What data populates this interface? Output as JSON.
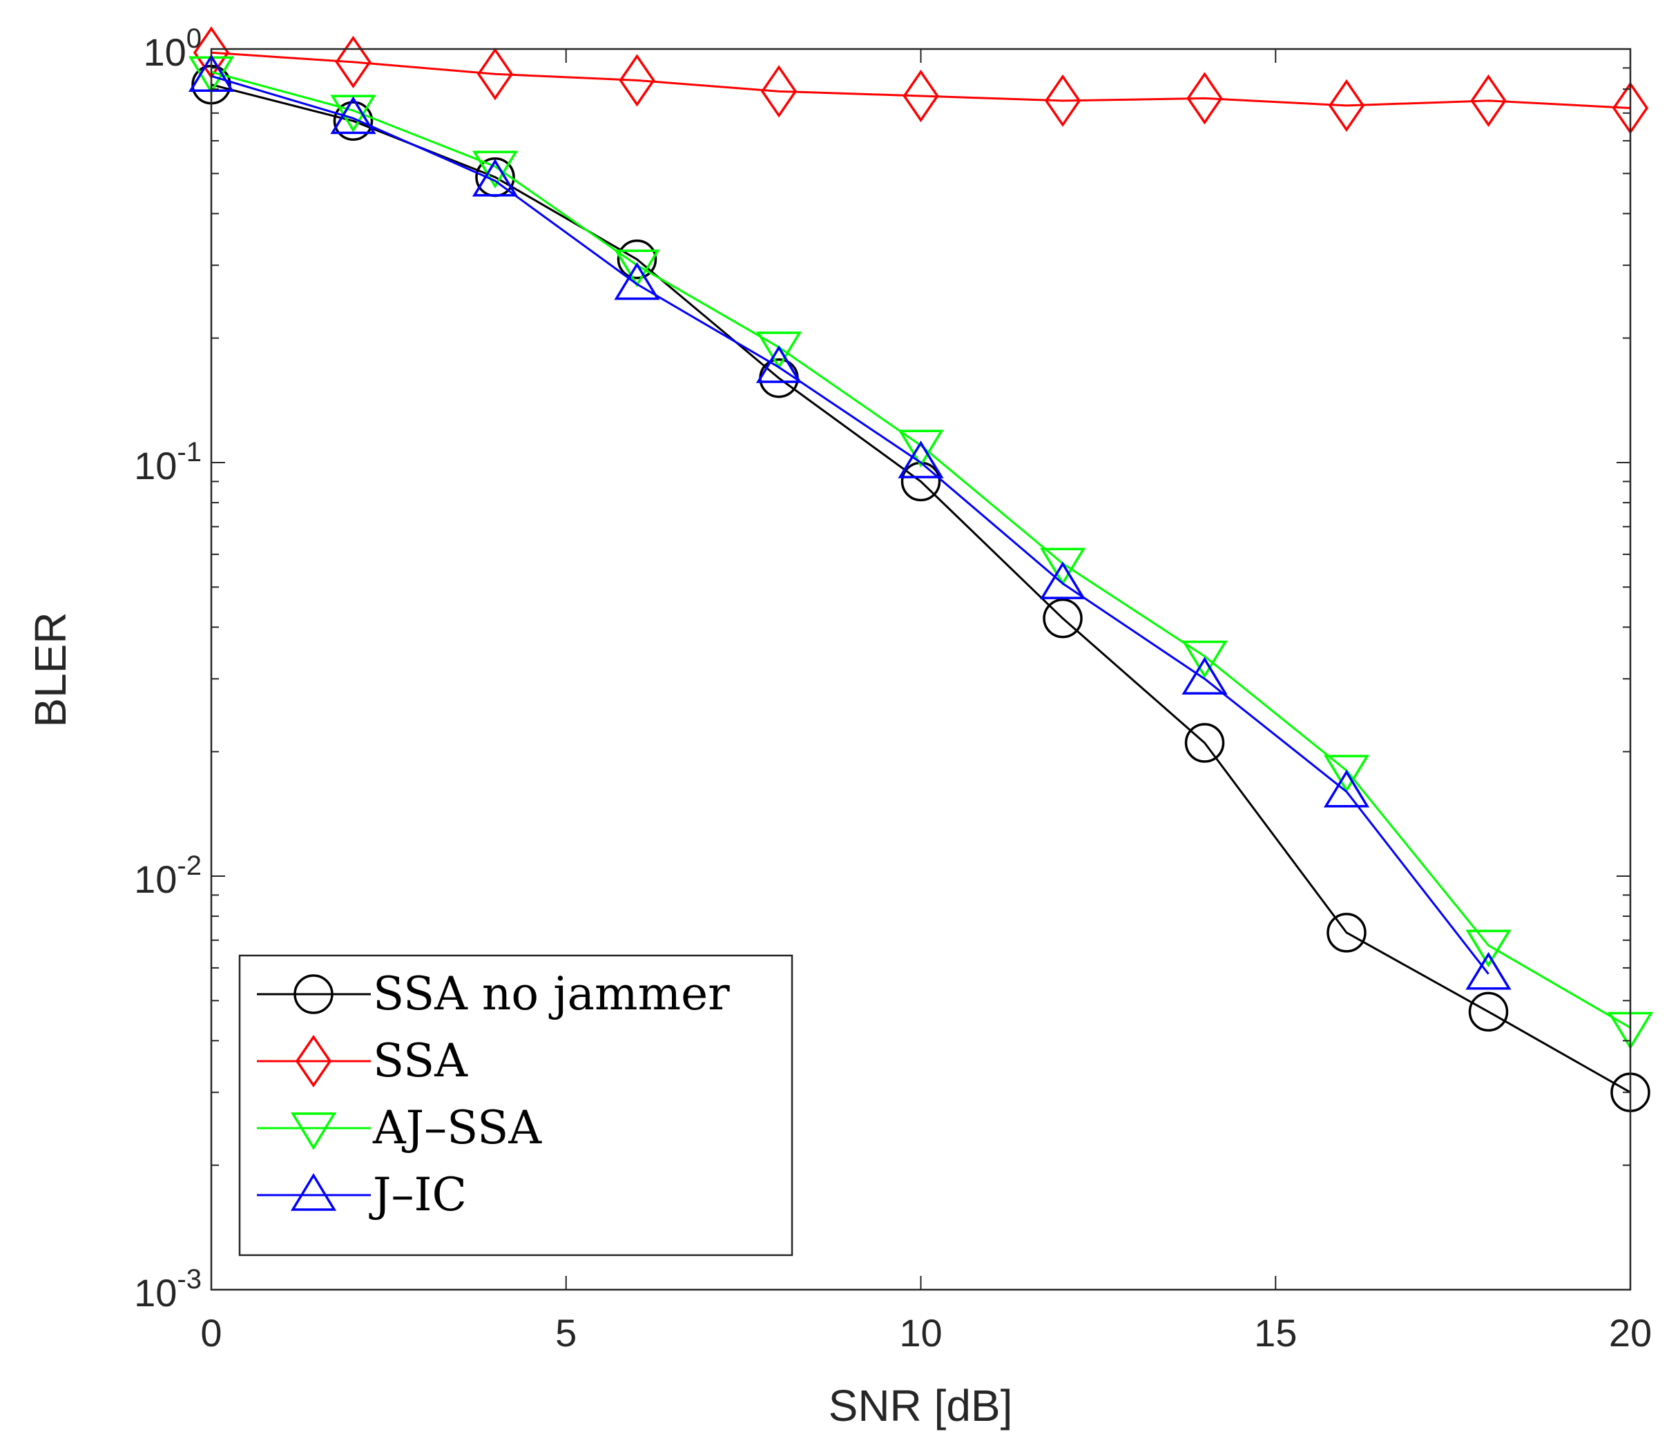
{
  "chart_data": {
    "type": "line",
    "title": "",
    "xlabel": "SNR [dB]",
    "ylabel": "BLER",
    "yscale": "log",
    "xlim": [
      0,
      20
    ],
    "ylim": [
      0.001,
      1
    ],
    "xticks": [
      0,
      5,
      10,
      15,
      20
    ],
    "xtick_labels": [
      "0",
      "5",
      "10",
      "15",
      "20"
    ],
    "yticks": [
      0.001,
      0.01,
      0.1,
      1
    ],
    "ytick_labels": [
      {
        "base": "10",
        "exp": "-3"
      },
      {
        "base": "10",
        "exp": "-2"
      },
      {
        "base": "10",
        "exp": "-1"
      },
      {
        "base": "10",
        "exp": "0"
      }
    ],
    "grid": false,
    "legend_position": "bottom-left",
    "x": [
      0,
      2,
      4,
      6,
      8,
      10,
      12,
      14,
      16,
      18,
      20
    ],
    "series": [
      {
        "name": "SSA no jammer",
        "color": "#000000",
        "marker": "circle",
        "values": [
          0.82,
          0.67,
          0.49,
          0.31,
          0.16,
          0.09,
          0.042,
          0.021,
          0.0073,
          0.0047,
          0.003
        ]
      },
      {
        "name": "SSA",
        "color": "#ff0000",
        "marker": "diamond",
        "values": [
          0.98,
          0.93,
          0.87,
          0.84,
          0.79,
          0.77,
          0.75,
          0.76,
          0.73,
          0.75,
          0.72
        ]
      },
      {
        "name": "AJ–SSA",
        "color": "#00ff00",
        "marker": "triangle-down",
        "values": [
          0.88,
          0.71,
          0.52,
          0.3,
          0.19,
          0.11,
          0.057,
          0.034,
          0.018,
          0.0068,
          0.0043
        ]
      },
      {
        "name": "J–IC",
        "color": "#0000ff",
        "marker": "triangle-up",
        "values": [
          0.86,
          0.68,
          0.48,
          0.27,
          0.17,
          0.1,
          0.051,
          0.03,
          0.016,
          0.0058,
          null
        ]
      }
    ]
  }
}
